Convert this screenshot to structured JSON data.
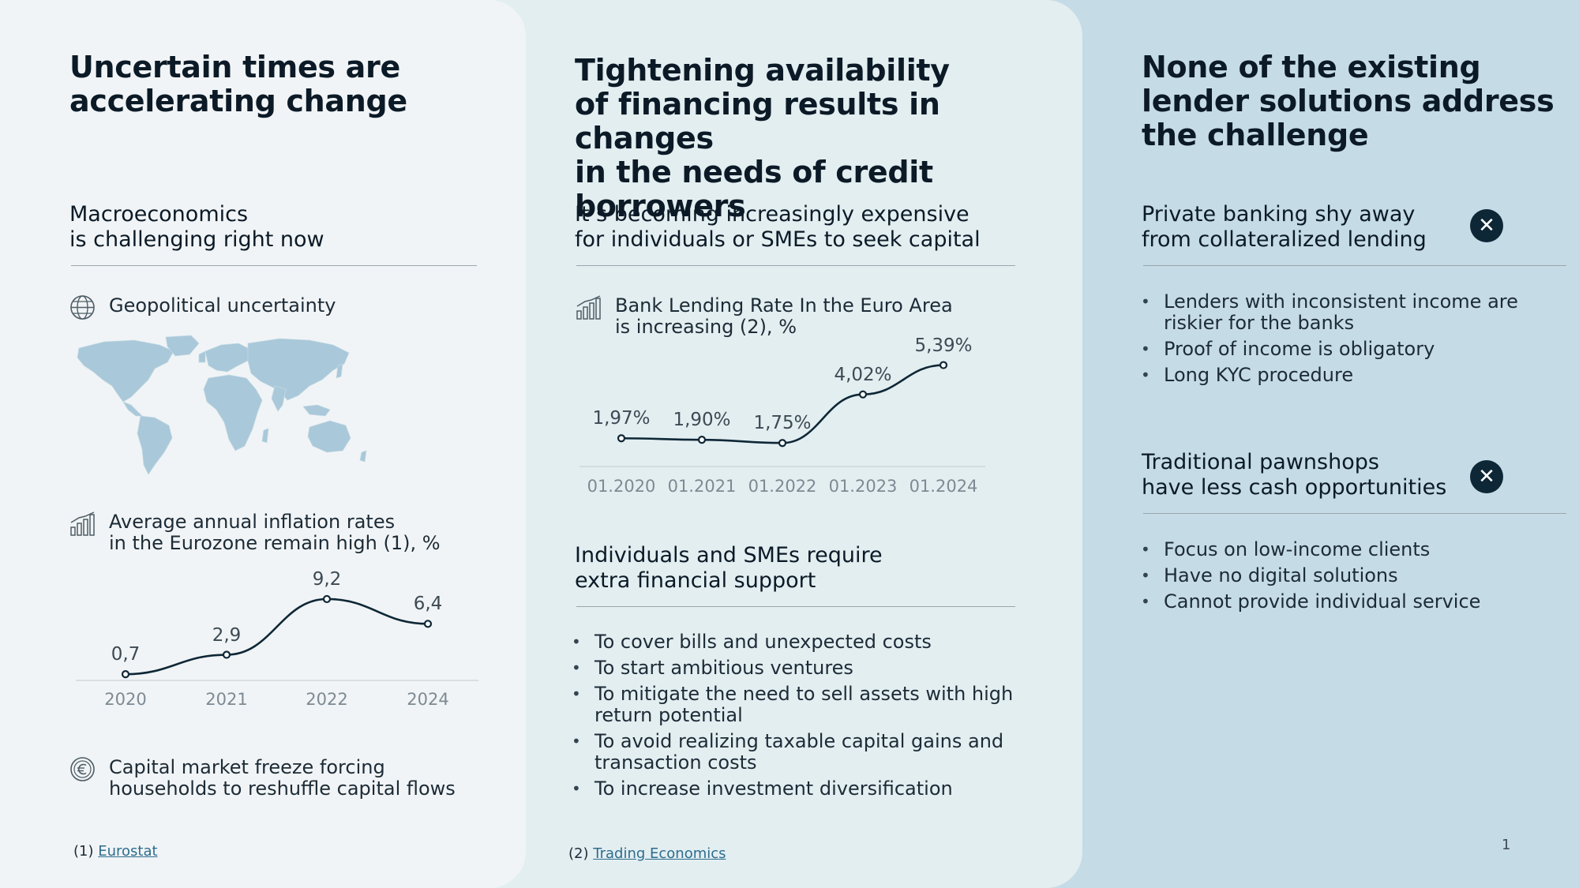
{
  "col1": {
    "title_l1": "Uncertain times are",
    "title_l2": "accelerating change",
    "subtitle_l1": "Macroeconomics",
    "subtitle_l2": "is challenging right now",
    "geo_label": "Geopolitical uncertainty",
    "inflation_l1": "Average annual inflation rates",
    "inflation_l2": "in the Eurozone remain high (1), %",
    "capital_l1": "Capital market freeze forcing",
    "capital_l2": "households to reshuffle capital flows",
    "footnote_num": "(1)",
    "footnote_link": "Eurostat"
  },
  "col2": {
    "title_l1": "Tightening availability",
    "title_l2": "of financing results in changes",
    "title_l3": "in the needs of credit borrowers",
    "subtitle_l1": "It’s becoming increasingly expensive",
    "subtitle_l2": "for individuals or SMEs to seek capital",
    "lending_l1": "Bank Lending Rate In the Euro Area",
    "lending_l2": "is increasing (2), %",
    "sub2_l1": "Individuals and SMEs require",
    "sub2_l2": "extra financial support",
    "bullets": [
      "To cover bills and unexpected costs",
      "To start ambitious ventures",
      "To mitigate the need to sell assets with high return potential",
      "To avoid realizing taxable capital gains and transaction costs",
      "To increase investment diversification"
    ],
    "footnote_num": "(2)",
    "footnote_link": "Trading Economics"
  },
  "col3": {
    "title_l1": "None of the existing",
    "title_l2": "lender solutions address",
    "title_l3": "the challenge",
    "sec1_l1": "Private banking shy away",
    "sec1_l2": "from collateralized lending",
    "sec1_bullets": [
      "Lenders with inconsistent income are riskier for the banks",
      "Proof of income is obligatory",
      "Long KYC procedure"
    ],
    "sec2_l1": "Traditional pawnshops",
    "sec2_l2": "have less cash opportunities",
    "sec2_bullets": [
      "Focus on low-income clients",
      "Have no digital solutions",
      "Cannot provide individual service"
    ],
    "page_number": "1"
  },
  "icons": {
    "globe": "globe-icon",
    "bar_chart": "bar-chart-icon",
    "euro_coin": "euro-coin-icon",
    "close": "close-icon"
  },
  "colors": {
    "col1_bg": "#f1f4f6",
    "col2_bg": "#e3eef1",
    "col3_bg": "#c5dbe6",
    "line": "#0e2736",
    "map": "#a9c8d9"
  },
  "chart_data": [
    {
      "type": "line",
      "x": [
        "2020",
        "2021",
        "2022",
        "2024"
      ],
      "values": [
        0.7,
        2.9,
        9.2,
        6.4
      ],
      "labels": [
        "0,7",
        "2,9",
        "9,2",
        "6,4"
      ],
      "ylim": [
        0,
        10
      ],
      "grid": false
    },
    {
      "type": "line",
      "x": [
        "01.2020",
        "01.2021",
        "01.2022",
        "01.2023",
        "01.2024"
      ],
      "values": [
        1.97,
        1.9,
        1.75,
        4.02,
        5.39
      ],
      "labels": [
        "1,97%",
        "1,90%",
        "1,75%",
        "4,02%",
        "5,39%"
      ],
      "ylim": [
        1.5,
        6
      ],
      "grid": false
    }
  ]
}
